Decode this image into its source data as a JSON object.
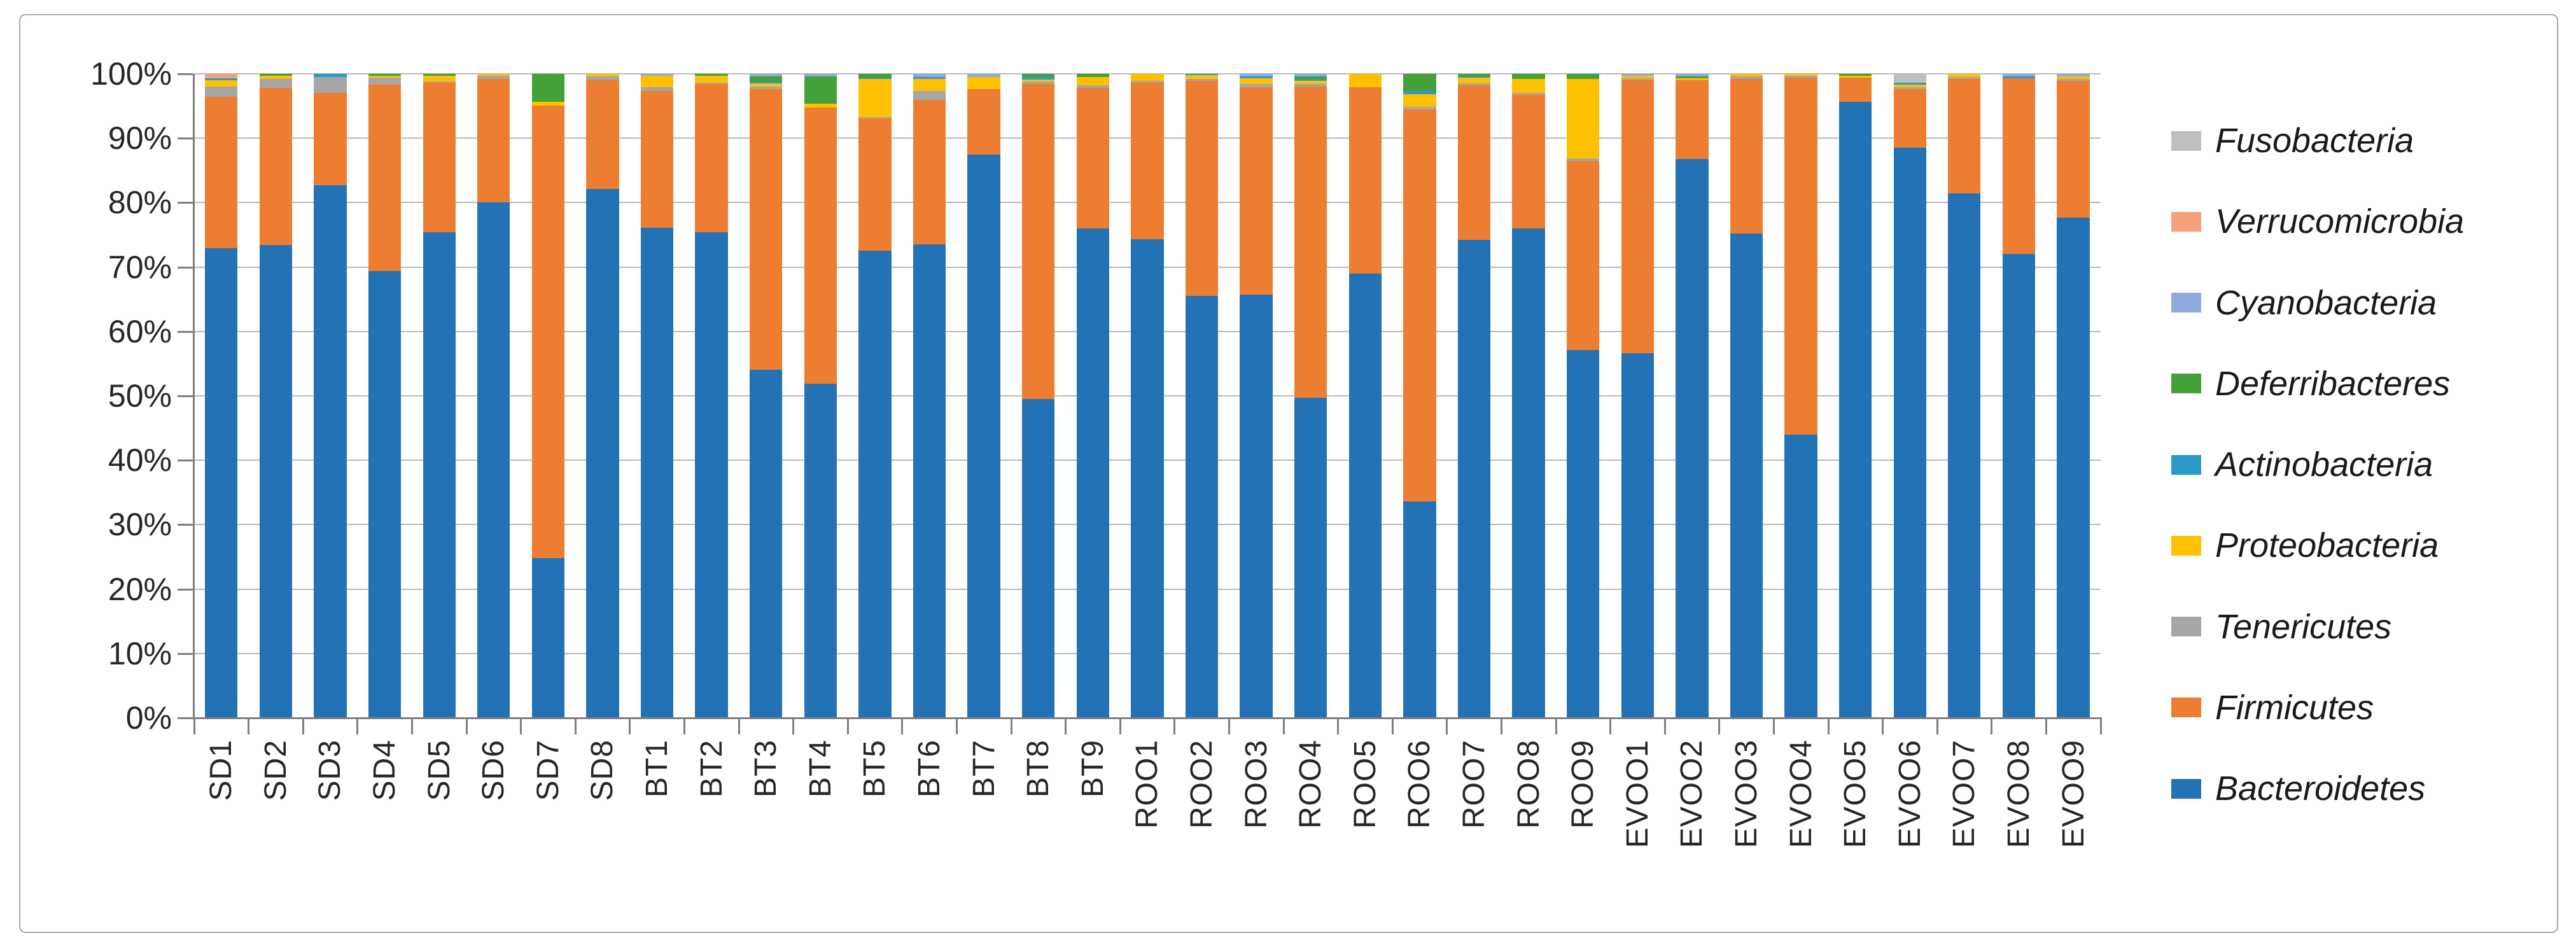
{
  "figure": {
    "background": "#ffffff",
    "frame_border_color": "#a9a9a9",
    "axis_color": "#7f7f7f",
    "gridline_color": "#b9b9b9",
    "text_color": "#262626"
  },
  "chart_data": {
    "type": "bar",
    "subtype": "stacked-100-percent",
    "title": "",
    "xlabel": "",
    "ylabel": "",
    "ylim": [
      0,
      100
    ],
    "grid": true,
    "legend_position": "right",
    "y_tick_labels": [
      "100%",
      "90%",
      "80%",
      "70%",
      "60%",
      "50%",
      "40%",
      "30%",
      "20%",
      "10%",
      "0%"
    ],
    "categories": [
      "SD1",
      "SD2",
      "SD3",
      "SD4",
      "SD5",
      "SD6",
      "SD7",
      "SD8",
      "BT1",
      "BT2",
      "BT3",
      "BT4",
      "BT5",
      "BT6",
      "BT7",
      "BT8",
      "BT9",
      "ROO1",
      "ROO2",
      "ROO3",
      "ROO4",
      "ROO5",
      "ROO6",
      "ROO7",
      "ROO8",
      "ROO9",
      "EVOO1",
      "EVOO2",
      "EVOO3",
      "EVOO4",
      "EVOO5",
      "EVOO6",
      "EVOO7",
      "EVOO8",
      "EVOO9"
    ],
    "series_stack_order": "bottom-to-top",
    "series": [
      {
        "name": "Bacteroidetes",
        "color": "#2272B5",
        "values": [
          72.9,
          73.4,
          82.7,
          69.4,
          75.4,
          80.0,
          24.8,
          82.1,
          76.1,
          75.4,
          54.1,
          51.9,
          72.5,
          73.5,
          87.5,
          49.5,
          76.0,
          74.3,
          65.5,
          65.7,
          49.7,
          69.0,
          33.6,
          74.2,
          76.0,
          57.1,
          56.6,
          86.8,
          75.2,
          44.0,
          95.7,
          88.5,
          81.4,
          72.0,
          77.7
        ]
      },
      {
        "name": "Firmicutes",
        "color": "#ED7D31",
        "values": [
          23.5,
          24.4,
          14.3,
          28.9,
          23.2,
          19.2,
          70.3,
          16.9,
          21.2,
          23.0,
          43.5,
          42.9,
          20.6,
          22.5,
          10.1,
          48.9,
          21.8,
          24.3,
          33.4,
          32.2,
          48.3,
          28.9,
          60.9,
          24.0,
          20.7,
          29.4,
          42.4,
          12.2,
          24.0,
          55.4,
          3.7,
          9.1,
          17.8,
          27.3,
          21.2
        ]
      },
      {
        "name": "Tenericutes",
        "color": "#A6A6A6",
        "values": [
          1.6,
          1.4,
          2.5,
          1.1,
          0.2,
          0.5,
          0,
          0.6,
          0.6,
          0.2,
          0.4,
          0,
          0.2,
          1.3,
          0,
          0.4,
          0.4,
          0.3,
          0.3,
          0.5,
          0.4,
          0,
          0.4,
          0.3,
          0.3,
          0.4,
          0.3,
          0,
          0.4,
          0.3,
          0,
          0.3,
          0.3,
          0,
          0.3
        ]
      },
      {
        "name": "Proteobacteria",
        "color": "#FFC000",
        "values": [
          1.0,
          0.5,
          0,
          0.3,
          0.9,
          0.3,
          0.6,
          0.4,
          1.8,
          1.1,
          0.5,
          0.6,
          5.9,
          1.9,
          1.9,
          0.3,
          1.3,
          1.1,
          0.6,
          0.9,
          0.5,
          2.1,
          1.9,
          0.9,
          2.2,
          12.3,
          0.4,
          0.3,
          0.4,
          0.3,
          0.3,
          0.4,
          0.5,
          0,
          0.4
        ]
      },
      {
        "name": "Actinobacteria",
        "color": "#2B9AC8",
        "values": [
          0.3,
          0,
          0.5,
          0,
          0,
          0,
          0,
          0,
          0,
          0,
          0.3,
          0,
          0.2,
          0.3,
          0,
          0.4,
          0,
          0,
          0.2,
          0.3,
          0.3,
          0,
          0.5,
          0.2,
          0,
          0,
          0,
          0,
          0,
          0,
          0,
          0.3,
          0,
          0.3,
          0
        ]
      },
      {
        "name": "Deferribacteres",
        "color": "#44A038",
        "values": [
          0,
          0.3,
          0,
          0.3,
          0.3,
          0,
          4.3,
          0,
          0,
          0.3,
          0.8,
          4.2,
          0.6,
          0,
          0,
          0.5,
          0.5,
          0,
          0,
          0,
          0.4,
          0,
          2.7,
          0.4,
          0.8,
          0.8,
          0,
          0.3,
          0,
          0,
          0.3,
          0,
          0,
          0,
          0
        ]
      },
      {
        "name": "Cyanobacteria",
        "color": "#8FAADC",
        "values": [
          0,
          0,
          0,
          0,
          0,
          0,
          0,
          0,
          0.3,
          0,
          0.4,
          0.4,
          0,
          0.5,
          0.5,
          0,
          0,
          0,
          0,
          0.4,
          0.4,
          0,
          0,
          0,
          0,
          0,
          0.3,
          0.4,
          0,
          0,
          0,
          0,
          0,
          0.4,
          0.4
        ]
      },
      {
        "name": "Verrucomicrobia",
        "color": "#F6A17C",
        "values": [
          0.7,
          0,
          0,
          0,
          0,
          0,
          0,
          0,
          0,
          0,
          0,
          0,
          0,
          0,
          0,
          0,
          0,
          0,
          0,
          0,
          0,
          0,
          0,
          0,
          0,
          0,
          0,
          0,
          0,
          0,
          0,
          0,
          0,
          0,
          0
        ]
      },
      {
        "name": "Fusobacteria",
        "color": "#BFBFBF",
        "values": [
          0,
          0,
          0,
          0,
          0,
          0,
          0,
          0,
          0,
          0,
          0,
          0,
          0,
          0,
          0,
          0,
          0,
          0,
          0,
          0,
          0,
          0,
          0,
          0,
          0,
          0,
          0,
          0,
          0,
          0,
          0,
          1.4,
          0,
          0,
          0
        ]
      }
    ],
    "legend_order_top_to_bottom": [
      "Fusobacteria",
      "Verrucomicrobia",
      "Cyanobacteria",
      "Deferribacteres",
      "Actinobacteria",
      "Proteobacteria",
      "Tenericutes",
      "Firmicutes",
      "Bacteroidetes"
    ]
  }
}
